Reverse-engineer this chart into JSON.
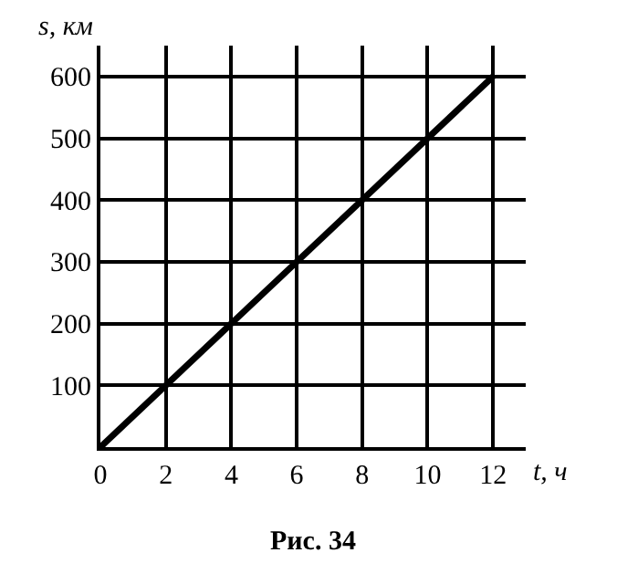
{
  "chart_data": {
    "type": "line",
    "xlabel": "t, ч",
    "ylabel": "s, км",
    "annotations": [
      "Рис. 34"
    ],
    "x": [
      0,
      12
    ],
    "series": [
      {
        "color": "#000000",
        "values": [
          0,
          600
        ]
      }
    ],
    "xlim": [
      0,
      13
    ],
    "ylim": [
      0,
      650
    ],
    "xticks": [
      0,
      2,
      4,
      6,
      8,
      10,
      12
    ],
    "yticks": [
      100,
      200,
      300,
      400,
      500,
      600
    ],
    "grid": true,
    "marker": "none",
    "line_style": "solid"
  }
}
